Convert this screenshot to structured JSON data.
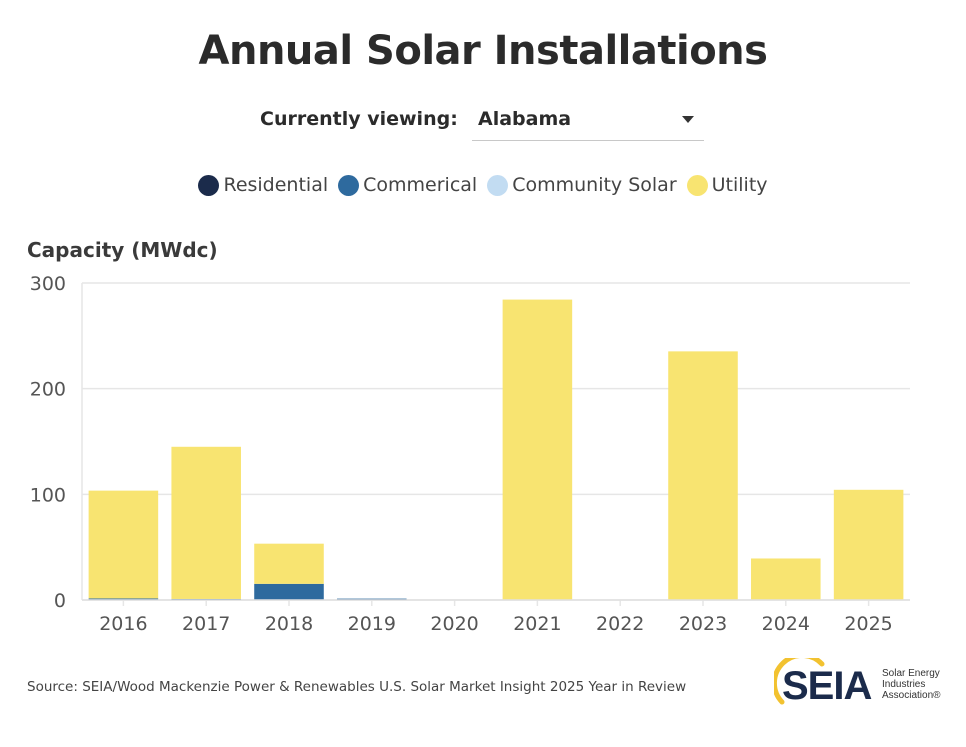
{
  "header": {
    "title": "Annual Solar Installations",
    "viewing_label": "Currently viewing:",
    "selected_state": "Alabama"
  },
  "legend": [
    {
      "label": "Residential",
      "color": "#1b2b4b"
    },
    {
      "label": "Commerical",
      "color": "#2e6a9e"
    },
    {
      "label": "Community Solar",
      "color": "#c2dcf2"
    },
    {
      "label": "Utility",
      "color": "#f8e471"
    }
  ],
  "footer": {
    "source": "Source: SEIA/Wood Mackenzie Power & Renewables U.S. Solar Market Insight 2025 Year in Review",
    "logo_text": "SEIA",
    "logo_sub_1": "Solar Energy",
    "logo_sub_2": "Industries",
    "logo_sub_3": "Association®"
  },
  "chart_data": {
    "type": "bar",
    "stacked": true,
    "title": "Annual Solar Installations",
    "xlabel": "",
    "ylabel": "Capacity (MWdc)",
    "ylim": [
      0,
      300
    ],
    "yticks": [
      0,
      100,
      200,
      300
    ],
    "grid": true,
    "legend_position": "top-center",
    "categories": [
      "2016",
      "2017",
      "2018",
      "2019",
      "2020",
      "2021",
      "2022",
      "2023",
      "2024",
      "2025"
    ],
    "series": [
      {
        "name": "Residential",
        "color": "#1b2b4b",
        "values": [
          0.5,
          0.5,
          0.3,
          0.3,
          0.2,
          0.3,
          0.3,
          0.3,
          0.3,
          0.3
        ]
      },
      {
        "name": "Commerical",
        "color": "#2e6a9e",
        "values": [
          1,
          0.5,
          15,
          1,
          0,
          0,
          0,
          0,
          0,
          0
        ]
      },
      {
        "name": "Community Solar",
        "color": "#c2dcf2",
        "values": [
          0,
          0,
          0,
          0,
          0,
          0,
          0,
          0,
          0,
          0
        ]
      },
      {
        "name": "Utility",
        "color": "#f8e471",
        "values": [
          102,
          144,
          38,
          0,
          0,
          284,
          0,
          235,
          39,
          104
        ]
      }
    ]
  }
}
